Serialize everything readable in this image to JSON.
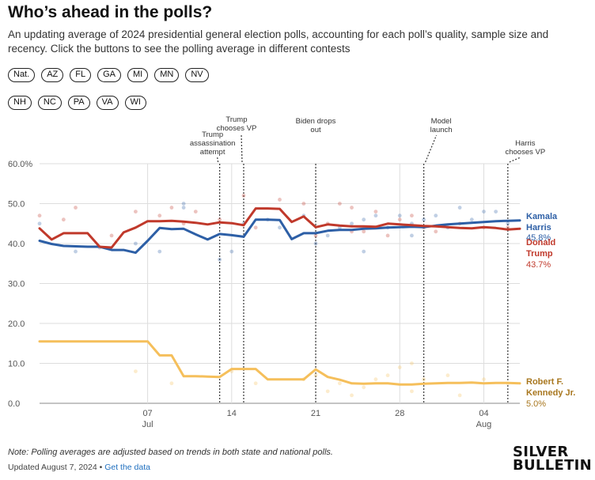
{
  "header": {
    "title": "Who’s ahead in the polls?",
    "subtitle": "An updating average of 2024 presidential general election polls, accounting for each poll’s quality, sample size and recency. Click the buttons to see the polling average in different contests"
  },
  "buttons_row1": [
    "Nat.",
    "AZ",
    "FL",
    "GA",
    "MI",
    "MN",
    "NV"
  ],
  "buttons_row2": [
    "NH",
    "NC",
    "PA",
    "VA",
    "WI"
  ],
  "footer": {
    "note": "Note: Polling averages are adjusted based on trends in both state and national polls.",
    "updated": "Updated August 7, 2024",
    "separator": " • ",
    "link": "Get the data",
    "logo_line1": "SILVER",
    "logo_line2": "BULLETIN"
  },
  "colors": {
    "harris": "#2d5fa6",
    "trump": "#c0392b",
    "kennedy": "#f5bf5b",
    "kennedy_label": "#a8771f",
    "grid": "#dddddd",
    "axis_text": "#555555"
  },
  "chart_data": {
    "type": "line",
    "x_start": "2024-06-28",
    "x_end": "2024-08-07",
    "ylim": [
      0,
      60
    ],
    "y_ticks": [
      "0.0",
      "10.0",
      "20.0",
      "30.0",
      "40.0",
      "50.0",
      "60.0%"
    ],
    "y_tick_values": [
      0,
      10,
      20,
      30,
      40,
      50,
      60
    ],
    "x_ticks": [
      {
        "date": "2024-07-07",
        "label": "07",
        "sublabel": "Jul"
      },
      {
        "date": "2024-07-14",
        "label": "14",
        "sublabel": ""
      },
      {
        "date": "2024-07-21",
        "label": "21",
        "sublabel": ""
      },
      {
        "date": "2024-07-28",
        "label": "28",
        "sublabel": ""
      },
      {
        "date": "2024-08-04",
        "label": "04",
        "sublabel": "Aug"
      }
    ],
    "grid": true,
    "annotations": [
      {
        "date": "2024-07-13",
        "lines": [
          "Trump",
          "assassination",
          "attempt"
        ],
        "side": "left"
      },
      {
        "date": "2024-07-15",
        "lines": [
          "Trump",
          "chooses VP"
        ],
        "side": "left"
      },
      {
        "date": "2024-07-21",
        "lines": [
          "Biden drops",
          "out"
        ],
        "side": "center"
      },
      {
        "date": "2024-07-30",
        "lines": [
          "Model",
          "launch"
        ],
        "side": "right"
      },
      {
        "date": "2024-08-06",
        "lines": [
          "Harris",
          "chooses VP"
        ],
        "side": "right"
      }
    ],
    "series": [
      {
        "key": "harris",
        "name_lines": [
          "Kamala",
          "Harris"
        ],
        "last_label": "45.8%",
        "x": [
          "2024-06-28",
          "2024-06-29",
          "2024-06-30",
          "2024-07-01",
          "2024-07-02",
          "2024-07-03",
          "2024-07-04",
          "2024-07-05",
          "2024-07-06",
          "2024-07-07",
          "2024-07-08",
          "2024-07-09",
          "2024-07-10",
          "2024-07-11",
          "2024-07-12",
          "2024-07-13",
          "2024-07-14",
          "2024-07-15",
          "2024-07-16",
          "2024-07-17",
          "2024-07-18",
          "2024-07-19",
          "2024-07-20",
          "2024-07-21",
          "2024-07-22",
          "2024-07-23",
          "2024-07-24",
          "2024-07-25",
          "2024-07-26",
          "2024-07-27",
          "2024-07-28",
          "2024-07-29",
          "2024-07-30",
          "2024-07-31",
          "2024-08-01",
          "2024-08-02",
          "2024-08-03",
          "2024-08-04",
          "2024-08-05",
          "2024-08-06",
          "2024-08-07"
        ],
        "values": [
          40.7,
          39.9,
          39.4,
          39.3,
          39.2,
          39.2,
          38.4,
          38.4,
          37.7,
          40.7,
          43.9,
          43.6,
          43.7,
          42.3,
          41.0,
          42.4,
          42.1,
          41.7,
          46.0,
          46.0,
          45.9,
          41.1,
          42.6,
          42.6,
          43.2,
          43.4,
          43.4,
          43.7,
          43.8,
          44.0,
          44.1,
          44.2,
          44.1,
          44.5,
          44.8,
          45.0,
          45.2,
          45.4,
          45.6,
          45.7,
          45.8
        ]
      },
      {
        "key": "trump",
        "name_lines": [
          "Donald",
          "Trump"
        ],
        "last_label": "43.7%",
        "x": [
          "2024-06-28",
          "2024-06-29",
          "2024-06-30",
          "2024-07-01",
          "2024-07-02",
          "2024-07-03",
          "2024-07-04",
          "2024-07-05",
          "2024-07-06",
          "2024-07-07",
          "2024-07-08",
          "2024-07-09",
          "2024-07-10",
          "2024-07-11",
          "2024-07-12",
          "2024-07-13",
          "2024-07-14",
          "2024-07-15",
          "2024-07-16",
          "2024-07-17",
          "2024-07-18",
          "2024-07-19",
          "2024-07-20",
          "2024-07-21",
          "2024-07-22",
          "2024-07-23",
          "2024-07-24",
          "2024-07-25",
          "2024-07-26",
          "2024-07-27",
          "2024-07-28",
          "2024-07-29",
          "2024-07-30",
          "2024-07-31",
          "2024-08-01",
          "2024-08-02",
          "2024-08-03",
          "2024-08-04",
          "2024-08-05",
          "2024-08-06",
          "2024-08-07"
        ],
        "values": [
          43.8,
          41.0,
          42.6,
          42.6,
          42.6,
          39.2,
          39.0,
          42.8,
          44.0,
          45.6,
          45.6,
          45.7,
          45.5,
          45.2,
          44.8,
          45.3,
          45.1,
          44.6,
          48.8,
          48.8,
          48.7,
          45.4,
          46.8,
          44.1,
          44.8,
          44.5,
          44.3,
          44.3,
          44.2,
          45.0,
          44.8,
          44.6,
          44.4,
          44.3,
          44.1,
          43.9,
          43.8,
          44.1,
          43.9,
          43.5,
          43.7
        ]
      },
      {
        "key": "kennedy",
        "name_lines": [
          "Robert F.",
          "Kennedy Jr."
        ],
        "last_label": "5.0%",
        "x": [
          "2024-06-28",
          "2024-06-29",
          "2024-06-30",
          "2024-07-01",
          "2024-07-02",
          "2024-07-03",
          "2024-07-04",
          "2024-07-05",
          "2024-07-06",
          "2024-07-07",
          "2024-07-08",
          "2024-07-09",
          "2024-07-10",
          "2024-07-11",
          "2024-07-12",
          "2024-07-13",
          "2024-07-14",
          "2024-07-15",
          "2024-07-16",
          "2024-07-17",
          "2024-07-18",
          "2024-07-19",
          "2024-07-20",
          "2024-07-21",
          "2024-07-22",
          "2024-07-23",
          "2024-07-24",
          "2024-07-25",
          "2024-07-26",
          "2024-07-27",
          "2024-07-28",
          "2024-07-29",
          "2024-07-30",
          "2024-07-31",
          "2024-08-01",
          "2024-08-02",
          "2024-08-03",
          "2024-08-04",
          "2024-08-05",
          "2024-08-06",
          "2024-08-07"
        ],
        "values": [
          15.5,
          15.5,
          15.5,
          15.5,
          15.5,
          15.5,
          15.5,
          15.5,
          15.5,
          15.5,
          12.0,
          12.0,
          6.8,
          6.8,
          6.7,
          6.6,
          8.6,
          8.6,
          8.6,
          6.0,
          6.0,
          6.0,
          6.0,
          8.5,
          6.6,
          5.9,
          5.0,
          4.9,
          5.0,
          5.0,
          4.7,
          4.7,
          4.9,
          5.0,
          5.1,
          5.1,
          5.2,
          5.0,
          5.1,
          5.1,
          5.0
        ]
      }
    ],
    "polls": {
      "harris": [
        [
          "2024-06-28",
          45
        ],
        [
          "2024-07-01",
          38
        ],
        [
          "2024-07-03",
          39
        ],
        [
          "2024-07-06",
          40
        ],
        [
          "2024-07-08",
          38
        ],
        [
          "2024-07-10",
          49
        ],
        [
          "2024-07-10",
          50
        ],
        [
          "2024-07-13",
          36
        ],
        [
          "2024-07-14",
          38
        ],
        [
          "2024-07-15",
          45
        ],
        [
          "2024-07-17",
          46
        ],
        [
          "2024-07-18",
          44
        ],
        [
          "2024-07-20",
          47
        ],
        [
          "2024-07-21",
          40
        ],
        [
          "2024-07-22",
          42
        ],
        [
          "2024-07-23",
          44
        ],
        [
          "2024-07-24",
          45
        ],
        [
          "2024-07-25",
          38
        ],
        [
          "2024-07-25",
          46
        ],
        [
          "2024-07-26",
          47
        ],
        [
          "2024-07-27",
          44
        ],
        [
          "2024-07-28",
          47
        ],
        [
          "2024-07-29",
          45
        ],
        [
          "2024-07-29",
          42
        ],
        [
          "2024-07-30",
          46
        ],
        [
          "2024-07-31",
          47
        ],
        [
          "2024-08-01",
          44
        ],
        [
          "2024-08-02",
          49
        ],
        [
          "2024-08-03",
          46
        ],
        [
          "2024-08-04",
          48
        ],
        [
          "2024-08-05",
          48
        ],
        [
          "2024-08-06",
          45
        ]
      ],
      "trump": [
        [
          "2024-06-28",
          47
        ],
        [
          "2024-06-30",
          46
        ],
        [
          "2024-07-01",
          49
        ],
        [
          "2024-07-04",
          42
        ],
        [
          "2024-07-06",
          48
        ],
        [
          "2024-07-08",
          47
        ],
        [
          "2024-07-09",
          49
        ],
        [
          "2024-07-10",
          45
        ],
        [
          "2024-07-11",
          48
        ],
        [
          "2024-07-13",
          46
        ],
        [
          "2024-07-15",
          52
        ],
        [
          "2024-07-16",
          44
        ],
        [
          "2024-07-18",
          51
        ],
        [
          "2024-07-20",
          50
        ],
        [
          "2024-07-21",
          42
        ],
        [
          "2024-07-22",
          45
        ],
        [
          "2024-07-23",
          50
        ],
        [
          "2024-07-24",
          43
        ],
        [
          "2024-07-24",
          49
        ],
        [
          "2024-07-25",
          43
        ],
        [
          "2024-07-26",
          48
        ],
        [
          "2024-07-27",
          42
        ],
        [
          "2024-07-28",
          46
        ],
        [
          "2024-07-29",
          47
        ],
        [
          "2024-07-30",
          44
        ],
        [
          "2024-07-31",
          43
        ],
        [
          "2024-08-02",
          45
        ],
        [
          "2024-08-04",
          44
        ],
        [
          "2024-08-06",
          44
        ]
      ],
      "kennedy": [
        [
          "2024-07-06",
          8
        ],
        [
          "2024-07-09",
          5
        ],
        [
          "2024-07-14",
          8
        ],
        [
          "2024-07-16",
          5
        ],
        [
          "2024-07-20",
          6
        ],
        [
          "2024-07-21",
          7
        ],
        [
          "2024-07-22",
          3
        ],
        [
          "2024-07-23",
          5
        ],
        [
          "2024-07-24",
          2
        ],
        [
          "2024-07-25",
          4
        ],
        [
          "2024-07-26",
          6
        ],
        [
          "2024-07-27",
          7
        ],
        [
          "2024-07-28",
          9
        ],
        [
          "2024-07-29",
          10
        ],
        [
          "2024-07-29",
          3
        ],
        [
          "2024-07-30",
          6
        ],
        [
          "2024-08-01",
          7
        ],
        [
          "2024-08-02",
          2
        ],
        [
          "2024-08-04",
          6
        ],
        [
          "2024-08-06",
          5
        ]
      ]
    }
  }
}
